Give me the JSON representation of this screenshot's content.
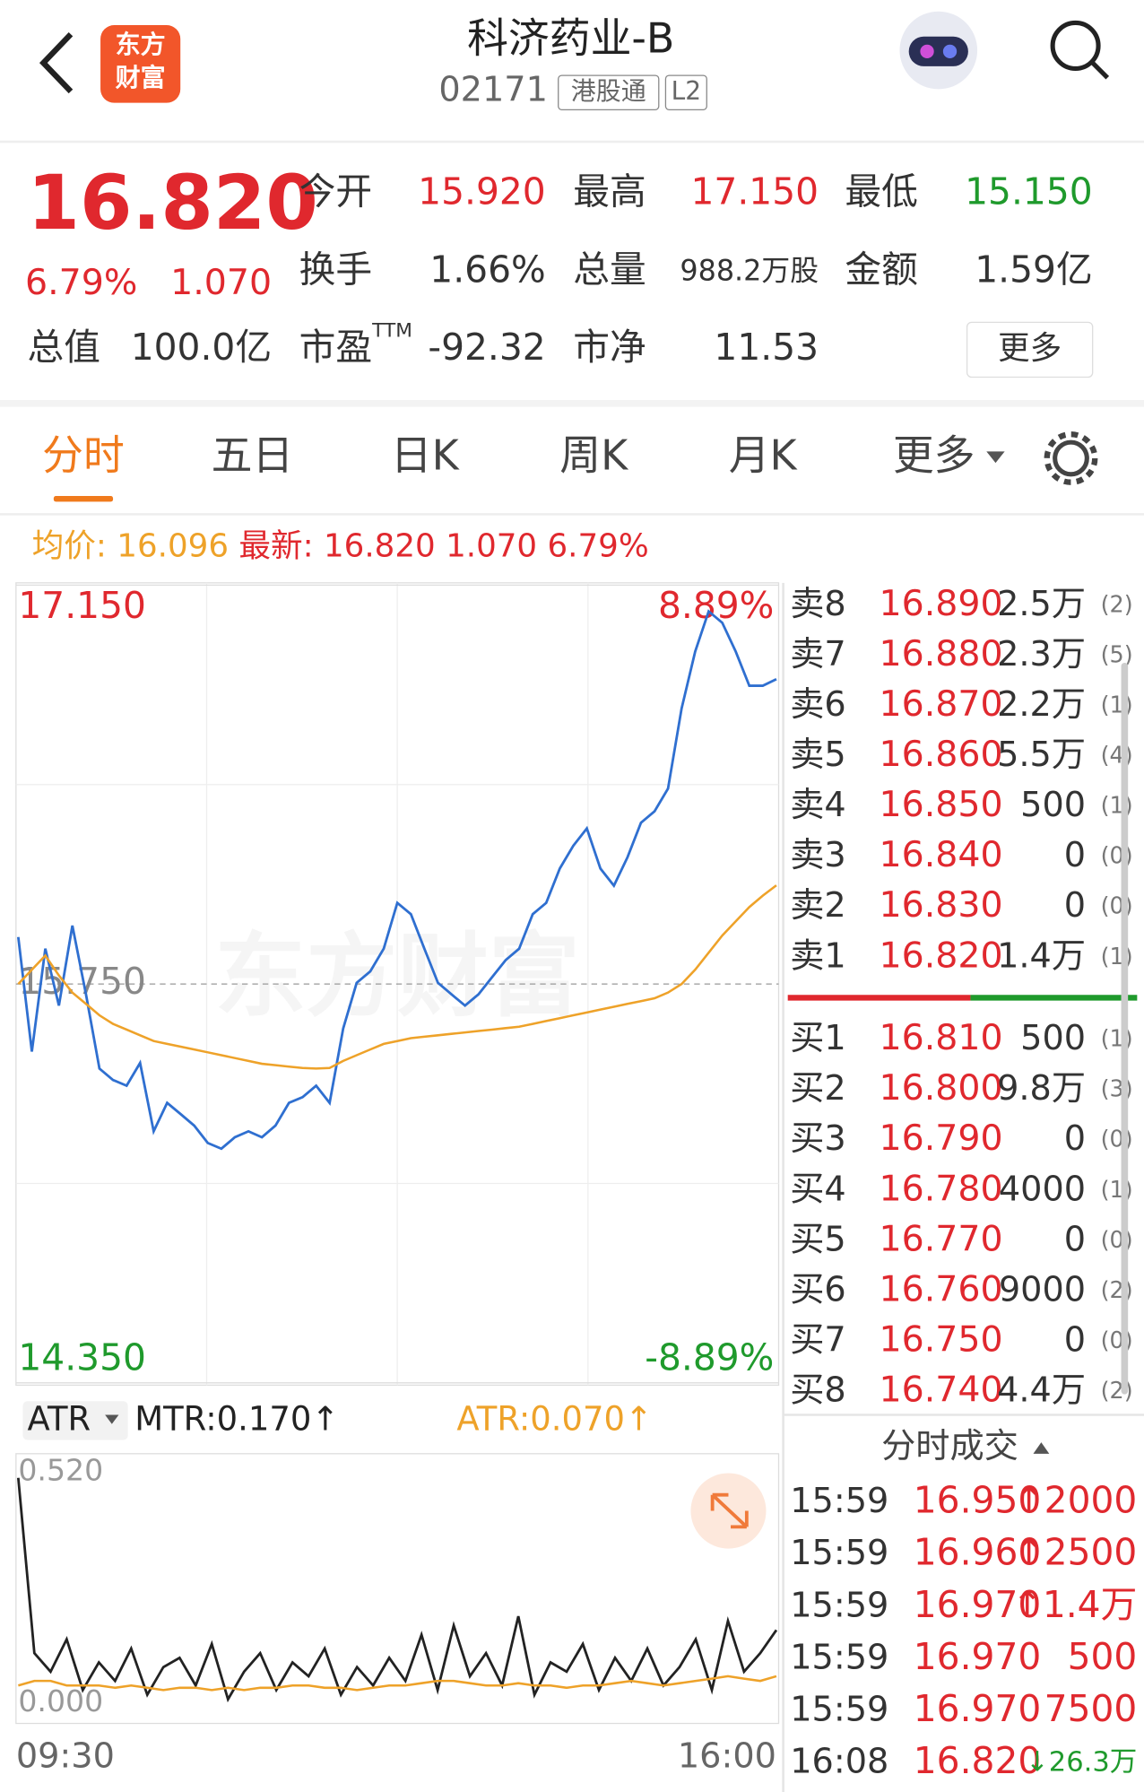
{
  "header": {
    "logo": [
      "东方",
      "财富"
    ],
    "title": "科济药业-B",
    "code": "02171",
    "tags": [
      "港股通",
      "L2"
    ]
  },
  "quote": {
    "price": "16.820",
    "change_pct": "6.79%",
    "change": "1.070",
    "market_cap_label": "总值",
    "market_cap": "100.0亿",
    "fields": [
      {
        "label": "今开",
        "value": "15.920",
        "color": "#e0282e"
      },
      {
        "label": "最高",
        "value": "17.150",
        "color": "#e0282e"
      },
      {
        "label": "最低",
        "value": "15.150",
        "color": "#1f9a2c"
      },
      {
        "label": "换手",
        "value": "1.66%"
      },
      {
        "label": "总量",
        "value": "988.2万股"
      },
      {
        "label": "金额",
        "value": "1.59亿"
      },
      {
        "label": "市盈",
        "sup": "TTM",
        "value": "-92.32"
      },
      {
        "label": "市净",
        "value": "11.53"
      }
    ],
    "more_button": "更多"
  },
  "tabs": {
    "items": [
      "分时",
      "五日",
      "日K",
      "周K",
      "月K",
      "更多"
    ],
    "active": 0
  },
  "summary": {
    "avg_label": "均价:",
    "avg": "16.096",
    "last_label": "最新:",
    "last": "16.820",
    "change": "1.070",
    "change_pct": "6.79%"
  },
  "intraday_chart": {
    "type": "line",
    "watermark": "东方财富",
    "ylim": [
      14.35,
      17.15
    ],
    "yticks": [
      {
        "value": 17.15,
        "label": "17.150"
      },
      {
        "value": 15.75,
        "label": "15.750"
      },
      {
        "value": 14.35,
        "label": "14.350"
      }
    ],
    "y2lim": [
      -8.89,
      8.89
    ],
    "y2ticks": [
      {
        "value": 8.89,
        "label": "8.89%"
      },
      {
        "value": -8.89,
        "label": "-8.89%"
      }
    ],
    "series": [
      {
        "color": "#2f6fd0",
        "values": [
          15.915,
          15.513,
          15.874,
          15.674,
          15.955,
          15.714,
          15.453,
          15.413,
          15.393,
          15.473,
          15.233,
          15.333,
          15.293,
          15.253,
          15.192,
          15.172,
          15.212,
          15.233,
          15.212,
          15.253,
          15.333,
          15.353,
          15.393,
          15.333,
          15.594,
          15.754,
          15.794,
          15.874,
          16.035,
          15.995,
          15.874,
          15.754,
          15.714,
          15.674,
          15.714,
          15.774,
          15.834,
          15.874,
          15.995,
          16.035,
          16.155,
          16.235,
          16.296,
          16.155,
          16.095,
          16.195,
          16.316,
          16.356,
          16.436,
          16.717,
          16.917,
          17.058,
          17.018,
          16.917,
          16.797,
          16.797,
          16.82
        ]
      },
      {
        "color": "#eea229",
        "values": [
          15.75,
          15.8,
          15.85,
          15.78,
          15.72,
          15.68,
          15.64,
          15.61,
          15.59,
          15.57,
          15.55,
          15.54,
          15.53,
          15.52,
          15.51,
          15.5,
          15.49,
          15.48,
          15.47,
          15.465,
          15.46,
          15.455,
          15.453,
          15.455,
          15.48,
          15.5,
          15.52,
          15.54,
          15.55,
          15.56,
          15.565,
          15.57,
          15.575,
          15.58,
          15.585,
          15.59,
          15.595,
          15.6,
          15.61,
          15.62,
          15.63,
          15.64,
          15.65,
          15.66,
          15.67,
          15.68,
          15.69,
          15.7,
          15.72,
          15.75,
          15.8,
          15.86,
          15.92,
          15.97,
          16.02,
          16.06,
          16.096
        ]
      }
    ]
  },
  "atr_chart": {
    "type": "line",
    "indicator": "ATR",
    "ylim": [
      0,
      0.52
    ],
    "yticks": [
      {
        "value": 0.52,
        "label": "0.520"
      },
      {
        "value": 0,
        "label": "0.000"
      }
    ],
    "x_labels": [
      "09:30",
      "16:00"
    ],
    "series": [
      {
        "name": "MTR:0.170↑",
        "color": "#222222",
        "values": [
          0.5,
          0.12,
          0.08,
          0.15,
          0.04,
          0.1,
          0.06,
          0.13,
          0.03,
          0.09,
          0.11,
          0.05,
          0.14,
          0.02,
          0.08,
          0.12,
          0.04,
          0.1,
          0.07,
          0.13,
          0.03,
          0.09,
          0.05,
          0.11,
          0.06,
          0.16,
          0.04,
          0.18,
          0.07,
          0.12,
          0.05,
          0.2,
          0.03,
          0.1,
          0.08,
          0.14,
          0.04,
          0.11,
          0.06,
          0.13,
          0.05,
          0.09,
          0.15,
          0.04,
          0.19,
          0.08,
          0.12,
          0.17
        ]
      },
      {
        "name": "ATR:0.070↑",
        "color": "#eea229",
        "values": [
          0.05,
          0.06,
          0.06,
          0.05,
          0.05,
          0.05,
          0.045,
          0.05,
          0.045,
          0.04,
          0.045,
          0.045,
          0.04,
          0.045,
          0.04,
          0.045,
          0.045,
          0.05,
          0.05,
          0.045,
          0.045,
          0.04,
          0.045,
          0.05,
          0.05,
          0.055,
          0.06,
          0.06,
          0.055,
          0.05,
          0.05,
          0.055,
          0.05,
          0.05,
          0.045,
          0.05,
          0.05,
          0.055,
          0.06,
          0.055,
          0.05,
          0.055,
          0.06,
          0.065,
          0.07,
          0.065,
          0.06,
          0.07
        ]
      }
    ]
  },
  "order_book": {
    "asks": [
      {
        "label": "卖8",
        "price": "16.890",
        "volume": "2.5万",
        "count": "(2)"
      },
      {
        "label": "卖7",
        "price": "16.880",
        "volume": "2.3万",
        "count": "(5)"
      },
      {
        "label": "卖6",
        "price": "16.870",
        "volume": "2.2万",
        "count": "(1)"
      },
      {
        "label": "卖5",
        "price": "16.860",
        "volume": "5.5万",
        "count": "(4)"
      },
      {
        "label": "卖4",
        "price": "16.850",
        "volume": "500",
        "count": "(1)"
      },
      {
        "label": "卖3",
        "price": "16.840",
        "volume": "0",
        "count": "(0)"
      },
      {
        "label": "卖2",
        "price": "16.830",
        "volume": "0",
        "count": "(0)"
      },
      {
        "label": "卖1",
        "price": "16.820",
        "volume": "1.4万",
        "count": "(1)"
      }
    ],
    "bids": [
      {
        "label": "买1",
        "price": "16.810",
        "volume": "500",
        "count": "(1)"
      },
      {
        "label": "买2",
        "price": "16.800",
        "volume": "9.8万",
        "count": "(3)"
      },
      {
        "label": "买3",
        "price": "16.790",
        "volume": "0",
        "count": "(0)"
      },
      {
        "label": "买4",
        "price": "16.780",
        "volume": "4000",
        "count": "(1)"
      },
      {
        "label": "买5",
        "price": "16.770",
        "volume": "0",
        "count": "(0)"
      },
      {
        "label": "买6",
        "price": "16.760",
        "volume": "9000",
        "count": "(2)"
      },
      {
        "label": "买7",
        "price": "16.750",
        "volume": "0",
        "count": "(0)"
      },
      {
        "label": "买8",
        "price": "16.740",
        "volume": "4.4万",
        "count": "(2)"
      }
    ]
  },
  "trades": {
    "title": "分时成交",
    "rows": [
      {
        "time": "15:59",
        "price": "16.950",
        "volume": "↑2000"
      },
      {
        "time": "15:59",
        "price": "16.960",
        "volume": "↑2500"
      },
      {
        "time": "15:59",
        "price": "16.970",
        "volume": "↑1.4万"
      },
      {
        "time": "15:59",
        "price": "16.970",
        "volume": "500"
      },
      {
        "time": "15:59",
        "price": "16.970",
        "volume": "7500"
      },
      {
        "time": "16:08",
        "price": "16.820",
        "volume": "↓26.3万",
        "color": "#1f9a2c"
      }
    ]
  }
}
